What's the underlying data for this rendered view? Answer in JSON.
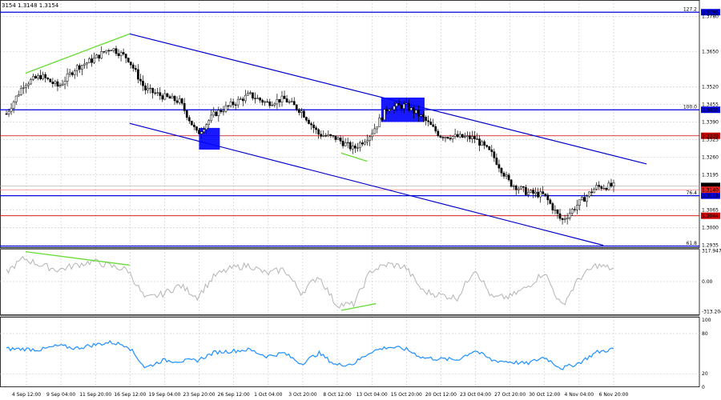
{
  "header": {
    "ohlc": "3154 1.3148 1.3154"
  },
  "chart_data": {
    "type": "candlestick",
    "title": "",
    "grid": true,
    "price_panel": {
      "ylim": [
        1.2925,
        1.384
      ],
      "y_ticks": [
        {
          "value": 1.378,
          "label": "1.3780"
        },
        {
          "value": 1.365,
          "label": "1.3650"
        },
        {
          "value": 1.352,
          "label": "1.3520"
        },
        {
          "value": 1.3455,
          "label": "1.3455"
        },
        {
          "value": 1.339,
          "label": "1.3390"
        },
        {
          "value": 1.3325,
          "label": "1.3325"
        },
        {
          "value": 1.326,
          "label": "1.3260"
        },
        {
          "value": 1.3195,
          "label": "1.3195"
        },
        {
          "value": 1.3065,
          "label": "1.3065"
        },
        {
          "value": 1.3,
          "label": "1.3000"
        },
        {
          "value": 1.2935,
          "label": "1.2935"
        }
      ],
      "current_price": {
        "value": 1.3154,
        "label": "1.3154"
      },
      "bid_line": {
        "value": 1.314,
        "label": "1.3140"
      },
      "fib_levels": [
        {
          "level": "127.2",
          "value": 1.3795,
          "label": "1.3795",
          "color": "#0000dd"
        },
        {
          "level": "100.0",
          "value": 1.3435,
          "label": "1.3435",
          "color": "#0000dd"
        },
        {
          "level": "76.4",
          "value": 1.3118,
          "label": "1.3118",
          "color": "#0000dd"
        },
        {
          "level": "61.8",
          "value": 1.2932,
          "label": ""
        }
      ],
      "horizontal_levels": [
        {
          "value": 1.3339,
          "label": "1.3339",
          "color": "#cc0000"
        },
        {
          "value": 1.3044,
          "label": "1.3044",
          "color": "#cc0000"
        }
      ],
      "channel_lines": [
        {
          "from": [
            7.1,
            1.3715
          ],
          "to": [
            36.9,
            1.3235
          ],
          "color": "#0000cc"
        },
        {
          "from": [
            7.1,
            1.3385
          ],
          "to": [
            34.4,
            1.2935
          ],
          "color": "#0000cc"
        }
      ],
      "divergence_line": [
        {
          "from": [
            1.1,
            1.357
          ],
          "to": [
            7.1,
            1.3715
          ],
          "color": "#66dd33"
        },
        {
          "from": [
            19.3,
            1.3275
          ],
          "to": [
            20.8,
            1.3245
          ],
          "color": "#66dd33"
        }
      ],
      "highlight_boxes": [
        {
          "x": [
            11.1,
            12.3
          ],
          "y": [
            1.3368,
            1.3288
          ]
        },
        {
          "x": [
            21.6,
            24.1
          ],
          "y": [
            1.348,
            1.339
          ]
        }
      ],
      "series": [
        {
          "t": 0,
          "v": 1.342
        },
        {
          "t": 1,
          "v": 1.353
        },
        {
          "t": 2,
          "v": 1.356
        },
        {
          "t": 3,
          "v": 1.352
        },
        {
          "t": 4,
          "v": 1.359
        },
        {
          "t": 5,
          "v": 1.362
        },
        {
          "t": 6,
          "v": 1.3665
        },
        {
          "t": 7,
          "v": 1.3625
        },
        {
          "t": 8,
          "v": 1.351
        },
        {
          "t": 9,
          "v": 1.3485
        },
        {
          "t": 10,
          "v": 1.3465
        },
        {
          "t": 11,
          "v": 1.3345
        },
        {
          "t": 12,
          "v": 1.342
        },
        {
          "t": 13,
          "v": 1.3455
        },
        {
          "t": 14,
          "v": 1.349
        },
        {
          "t": 15,
          "v": 1.346
        },
        {
          "t": 16,
          "v": 1.3475
        },
        {
          "t": 17,
          "v": 1.343
        },
        {
          "t": 18,
          "v": 1.3345
        },
        {
          "t": 19,
          "v": 1.333
        },
        {
          "t": 20,
          "v": 1.329
        },
        {
          "t": 21,
          "v": 1.3345
        },
        {
          "t": 22,
          "v": 1.3445
        },
        {
          "t": 23,
          "v": 1.345
        },
        {
          "t": 24,
          "v": 1.3405
        },
        {
          "t": 25,
          "v": 1.334
        },
        {
          "t": 26,
          "v": 1.3335
        },
        {
          "t": 27,
          "v": 1.333
        },
        {
          "t": 28,
          "v": 1.327
        },
        {
          "t": 29,
          "v": 1.3165
        },
        {
          "t": 30,
          "v": 1.313
        },
        {
          "t": 31,
          "v": 1.312
        },
        {
          "t": 32,
          "v": 1.3025
        },
        {
          "t": 33,
          "v": 1.309
        },
        {
          "t": 34,
          "v": 1.315
        },
        {
          "t": 35,
          "v": 1.3154
        }
      ]
    },
    "cci_panel": {
      "ylim": [
        -350,
        340
      ],
      "y_ticks": [
        {
          "value": 317.9471,
          "label": "317.9471"
        },
        {
          "value": 0,
          "label": "0.00"
        },
        {
          "value": -313.204,
          "label": "-313.204"
        }
      ],
      "divergence_lines": [
        {
          "from": [
            1.1,
            310
          ],
          "to": [
            7.1,
            170
          ],
          "color": "#66dd33"
        },
        {
          "from": [
            19.3,
            -300
          ],
          "to": [
            21.3,
            -230
          ],
          "color": "#66dd33"
        }
      ],
      "values": [
        100,
        240,
        170,
        120,
        170,
        210,
        160,
        120,
        -180,
        -130,
        -40,
        -160,
        60,
        140,
        170,
        80,
        130,
        -120,
        60,
        -240,
        -240,
        110,
        180,
        150,
        -100,
        -140,
        -170,
        140,
        -170,
        -160,
        -60,
        100,
        -260,
        30,
        170,
        130
      ]
    },
    "rsi_panel": {
      "ylim": [
        0,
        105
      ],
      "y_ticks": [
        {
          "value": 100,
          "label": "100"
        },
        {
          "value": 80,
          "label": "80"
        },
        {
          "value": 20,
          "label": "20"
        },
        {
          "value": 0,
          "label": "0"
        }
      ],
      "values": [
        57,
        57,
        56,
        62,
        58,
        63,
        67,
        62,
        29,
        40,
        39,
        40,
        52,
        54,
        56,
        46,
        51,
        35,
        51,
        33,
        35,
        53,
        60,
        57,
        44,
        42,
        41,
        55,
        40,
        38,
        35,
        45,
        28,
        36,
        52,
        57
      ],
      "color": "#1e8fff"
    },
    "x_ticks": [
      {
        "t": 0,
        "label": "4 Sep 12:00"
      },
      {
        "t": 1,
        "label": "9 Sep 04:00"
      },
      {
        "t": 2,
        "label": "11 Sep 20:00"
      },
      {
        "t": 3,
        "label": "16 Sep 12:00"
      },
      {
        "t": 4,
        "label": "19 Sep 04:00"
      },
      {
        "t": 5,
        "label": "23 Sep 20:00"
      },
      {
        "t": 6,
        "label": "26 Sep 12:00"
      },
      {
        "t": 7,
        "label": "1 Oct 04:00"
      },
      {
        "t": 8,
        "label": "3 Oct 20:00"
      },
      {
        "t": 9,
        "label": "8 Oct 12:00"
      },
      {
        "t": 10,
        "label": "13 Oct 04:00"
      },
      {
        "t": 11,
        "label": "15 Oct 20:00"
      },
      {
        "t": 12,
        "label": "20 Oct 12:00"
      },
      {
        "t": 13,
        "label": "23 Oct 04:00"
      },
      {
        "t": 14,
        "label": "27 Oct 20:00"
      },
      {
        "t": 15,
        "label": "30 Oct 12:00"
      },
      {
        "t": 16,
        "label": "4 Nov 04:00"
      },
      {
        "t": 17,
        "label": "6 Nov 20:00"
      }
    ]
  }
}
